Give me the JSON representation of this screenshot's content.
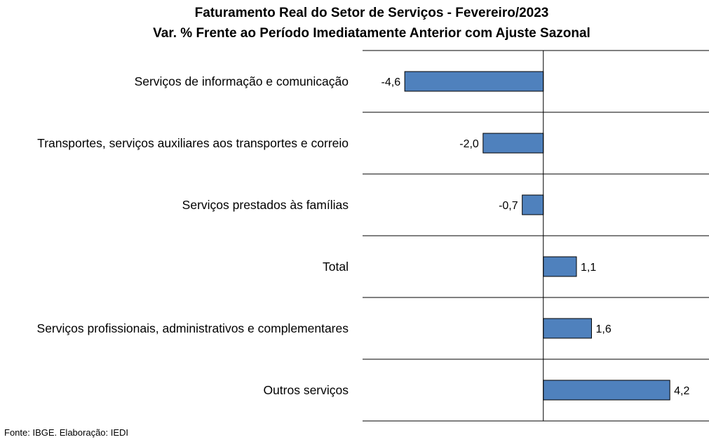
{
  "chart_data": {
    "type": "bar",
    "orientation": "horizontal",
    "title": "Faturamento Real do Setor de Serviços - Fevereiro/2023",
    "subtitle": "Var. % Frente ao Período Imediatamente Anterior com Ajuste Sazonal",
    "categories": [
      "Serviços de informação e comunicação",
      "Transportes, serviços auxiliares aos transportes e correio",
      "Serviços prestados às famílias",
      "Total",
      "Serviços profissionais, administrativos e complementares",
      "Outros serviços"
    ],
    "values": [
      -4.6,
      -2.0,
      -0.7,
      1.1,
      1.6,
      4.2
    ],
    "value_labels": [
      "-4,6",
      "-2,0",
      "-0,7",
      "1,1",
      "1,6",
      "4,2"
    ],
    "xlim": [
      -6,
      5.5
    ],
    "grid": "horizontal separators between categories",
    "bar_color": "#4F81BD",
    "bar_edge_color": "#000000"
  },
  "source": "Fonte: IBGE. Elaboração: IEDI"
}
